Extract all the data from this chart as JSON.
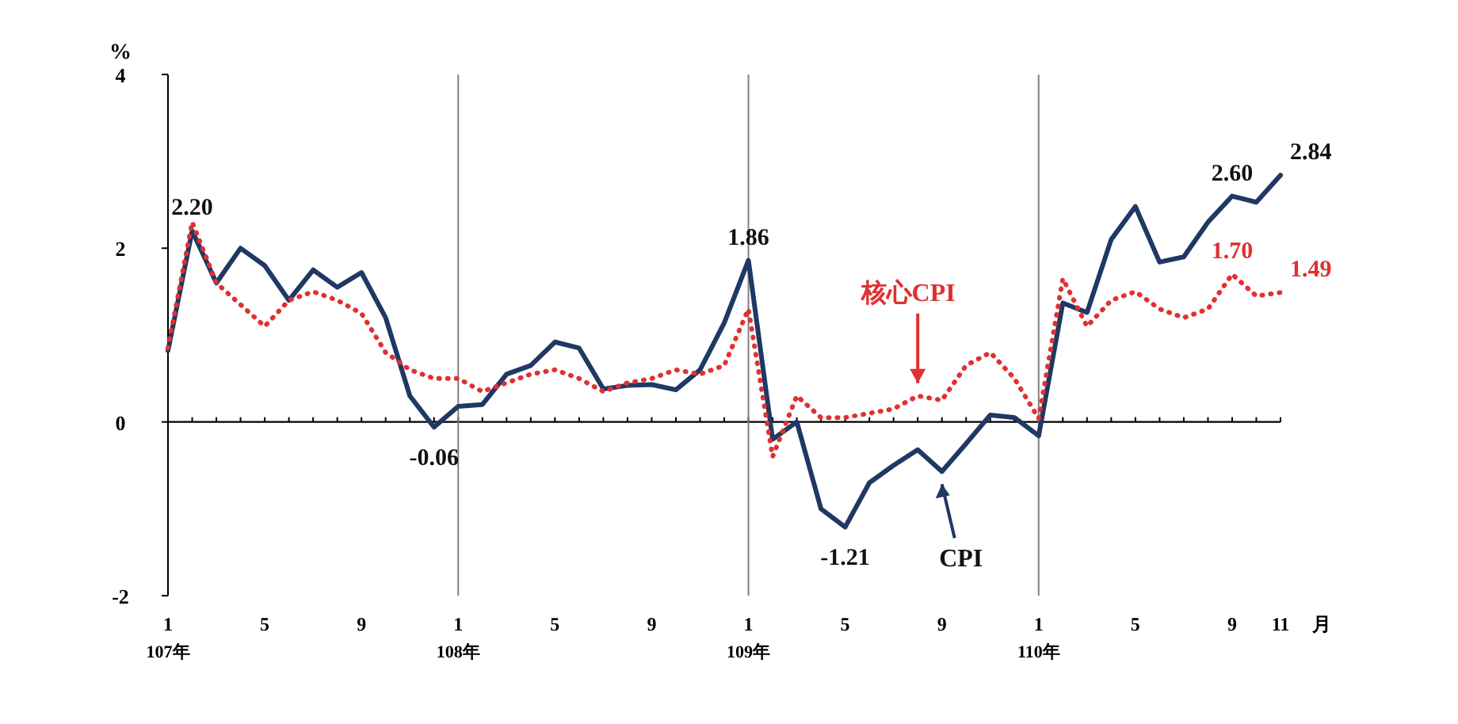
{
  "chart_data": {
    "type": "line",
    "ylabel": "%",
    "xlabel": "月",
    "categories": [
      "1\n107年",
      null,
      null,
      null,
      "5",
      null,
      null,
      null,
      "9",
      null,
      null,
      null,
      "1\n108年",
      null,
      null,
      null,
      "5",
      null,
      null,
      null,
      "9",
      null,
      null,
      null,
      "1\n109年",
      null,
      null,
      null,
      "5",
      null,
      null,
      null,
      "9",
      null,
      null,
      null,
      "1\n110年",
      null,
      null,
      null,
      "5",
      null,
      null,
      null,
      "9",
      null,
      "11"
    ],
    "series": [
      {
        "name": "CPI",
        "color": "#1f3864",
        "line_style": "solid",
        "values": [
          0.82,
          2.2,
          1.6,
          2.0,
          1.8,
          1.4,
          1.75,
          1.55,
          1.72,
          1.2,
          0.3,
          -0.06,
          0.18,
          0.2,
          0.55,
          0.65,
          0.92,
          0.85,
          0.38,
          0.42,
          0.43,
          0.37,
          0.6,
          1.14,
          1.86,
          -0.2,
          0.0,
          -1.0,
          -1.21,
          -0.7,
          -0.5,
          -0.32,
          -0.57,
          -0.25,
          0.08,
          0.05,
          -0.16,
          1.37,
          1.26,
          2.1,
          2.48,
          1.84,
          1.9,
          2.3,
          2.6,
          2.53,
          2.84
        ],
        "value_labels": [
          null,
          "2.20",
          null,
          null,
          null,
          null,
          null,
          null,
          null,
          null,
          null,
          "-0.06",
          null,
          null,
          null,
          null,
          null,
          null,
          null,
          null,
          null,
          null,
          null,
          null,
          "1.86",
          null,
          null,
          null,
          "-1.21",
          null,
          null,
          null,
          null,
          null,
          null,
          null,
          null,
          null,
          null,
          null,
          null,
          null,
          null,
          null,
          "2.60",
          null,
          "2.84"
        ]
      },
      {
        "name": "核心CPI",
        "color": "#e03030",
        "line_style": "dotted",
        "values": [
          0.85,
          2.3,
          1.6,
          1.35,
          1.1,
          1.4,
          1.5,
          1.4,
          1.25,
          0.8,
          0.6,
          0.5,
          0.5,
          0.35,
          0.45,
          0.55,
          0.6,
          0.5,
          0.35,
          0.45,
          0.5,
          0.6,
          0.55,
          0.65,
          1.3,
          -0.4,
          0.3,
          0.05,
          0.05,
          0.1,
          0.15,
          0.3,
          0.25,
          0.65,
          0.8,
          0.5,
          0.04,
          1.65,
          1.1,
          1.4,
          1.5,
          1.3,
          1.2,
          1.3,
          1.7,
          1.45,
          1.49
        ],
        "value_labels": [
          null,
          null,
          null,
          null,
          null,
          null,
          null,
          null,
          null,
          null,
          null,
          null,
          null,
          null,
          null,
          null,
          null,
          null,
          null,
          null,
          null,
          null,
          null,
          null,
          null,
          null,
          null,
          null,
          null,
          null,
          null,
          null,
          null,
          null,
          null,
          null,
          null,
          null,
          null,
          null,
          null,
          null,
          null,
          null,
          "1.70",
          null,
          "1.49"
        ]
      }
    ],
    "ylim": [
      -2,
      4
    ],
    "yticks": [
      -2,
      0,
      2,
      4
    ],
    "grid": false,
    "ref_lines": [
      {
        "axis": "x",
        "value": "1\n108年",
        "color": "#808080"
      },
      {
        "axis": "x",
        "value": "1\n109年",
        "color": "#808080"
      },
      {
        "axis": "x",
        "value": "1\n110年",
        "color": "#808080"
      }
    ]
  }
}
